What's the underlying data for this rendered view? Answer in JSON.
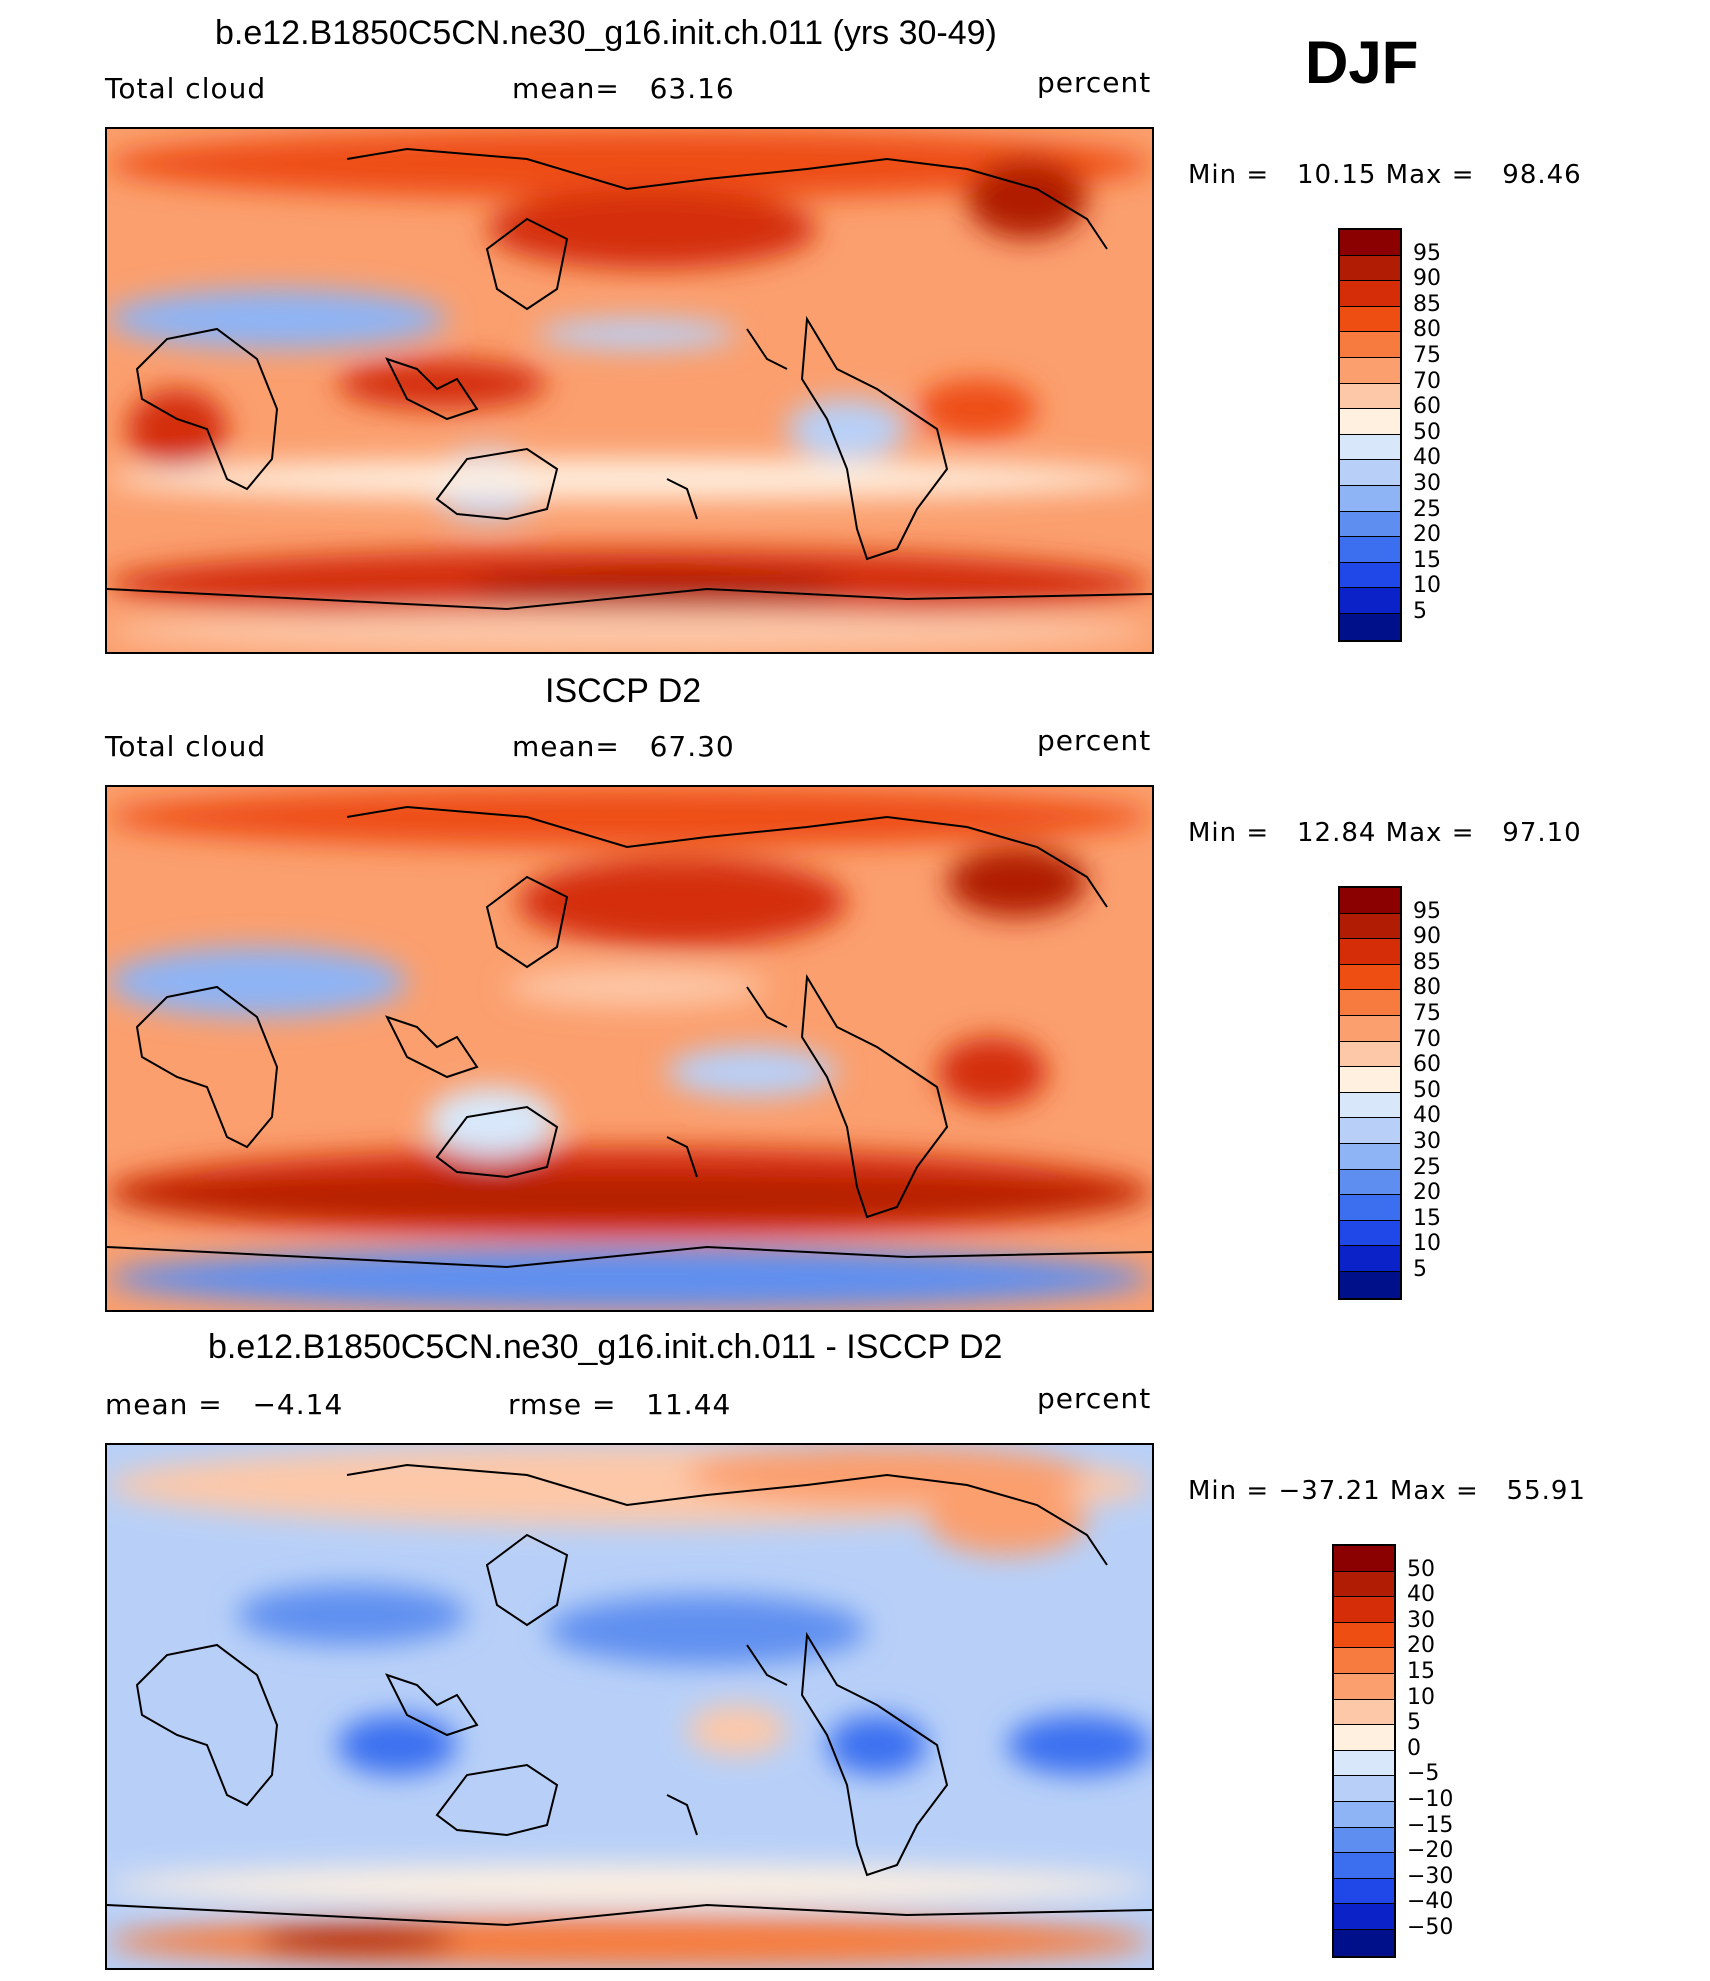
{
  "season": "DJF",
  "units": "percent",
  "coast_color": "#000000",
  "panels": [
    {
      "id": "model",
      "title": "b.e12.B1850C5CN.ne30_g16.init.ch.011 (yrs 30-49)",
      "left_label": "Total cloud",
      "center_label": "mean=   63.16",
      "right_label": "percent",
      "minmax": "Min =   10.15 Max =   98.46",
      "colorbar_colors": [
        "#8b0000",
        "#b01c04",
        "#d42d08",
        "#ee4e12",
        "#f77b3e",
        "#fb9f6e",
        "#fdc8a8",
        "#fff0e0",
        "#d8e8fa",
        "#b8d0f8",
        "#8eb4f5",
        "#5e8ff0",
        "#3b6ff0",
        "#2048e8",
        "#0a22c8",
        "#00108a"
      ],
      "colorbar_ticks": [
        "95",
        "90",
        "85",
        "80",
        "75",
        "70",
        "60",
        "50",
        "40",
        "30",
        "25",
        "20",
        "15",
        "10",
        "5"
      ],
      "field": {
        "base": "#fb9f6e",
        "regions": [
          {
            "c": "#d42d08",
            "x": 0,
            "y": 420,
            "w": 1045,
            "h": 70
          },
          {
            "c": "#b01c04",
            "x": 360,
            "y": 440,
            "w": 380,
            "h": 40
          },
          {
            "c": "#fdc8a8",
            "x": 0,
            "y": 480,
            "w": 1045,
            "h": 45
          },
          {
            "c": "#ee4e12",
            "x": 0,
            "y": 0,
            "w": 1045,
            "h": 70
          },
          {
            "c": "#d42d08",
            "x": 380,
            "y": 60,
            "w": 330,
            "h": 80
          },
          {
            "c": "#8eb4f5",
            "x": 0,
            "y": 160,
            "w": 340,
            "h": 60
          },
          {
            "c": "#b8d0f8",
            "x": 430,
            "y": 190,
            "w": 200,
            "h": 30
          },
          {
            "c": "#b8d0f8",
            "x": 680,
            "y": 270,
            "w": 120,
            "h": 60
          },
          {
            "c": "#d42d08",
            "x": 230,
            "y": 230,
            "w": 210,
            "h": 50
          },
          {
            "c": "#ee4e12",
            "x": 810,
            "y": 250,
            "w": 120,
            "h": 60
          },
          {
            "c": "#b01c04",
            "x": 860,
            "y": 30,
            "w": 120,
            "h": 80
          },
          {
            "c": "#b8d0f8",
            "x": 320,
            "y": 320,
            "w": 120,
            "h": 70
          },
          {
            "c": "#d42d08",
            "x": 20,
            "y": 260,
            "w": 100,
            "h": 80
          },
          {
            "c": "#fff0e0",
            "x": 0,
            "y": 330,
            "w": 1045,
            "h": 40
          }
        ]
      }
    },
    {
      "id": "obs",
      "title": "ISCCP D2",
      "left_label": "Total cloud",
      "center_label": "mean=   67.30",
      "right_label": "percent",
      "minmax": "Min =   12.84 Max =   97.10",
      "colorbar_colors": [
        "#8b0000",
        "#b01c04",
        "#d42d08",
        "#ee4e12",
        "#f77b3e",
        "#fb9f6e",
        "#fdc8a8",
        "#fff0e0",
        "#d8e8fa",
        "#b8d0f8",
        "#8eb4f5",
        "#5e8ff0",
        "#3b6ff0",
        "#2048e8",
        "#0a22c8",
        "#00108a"
      ],
      "colorbar_ticks": [
        "95",
        "90",
        "85",
        "80",
        "75",
        "70",
        "60",
        "50",
        "40",
        "30",
        "25",
        "20",
        "15",
        "10",
        "5"
      ],
      "field": {
        "base": "#fb9f6e",
        "regions": [
          {
            "c": "#d42d08",
            "x": 0,
            "y": 360,
            "w": 1045,
            "h": 90
          },
          {
            "c": "#b01c04",
            "x": 0,
            "y": 390,
            "w": 1045,
            "h": 40
          },
          {
            "c": "#5e8ff0",
            "x": 0,
            "y": 460,
            "w": 1045,
            "h": 63
          },
          {
            "c": "#8eb4f5",
            "x": 0,
            "y": 160,
            "w": 300,
            "h": 70
          },
          {
            "c": "#d42d08",
            "x": 410,
            "y": 70,
            "w": 330,
            "h": 90
          },
          {
            "c": "#fdc8a8",
            "x": 400,
            "y": 180,
            "w": 260,
            "h": 40
          },
          {
            "c": "#b8d0f8",
            "x": 560,
            "y": 260,
            "w": 170,
            "h": 50
          },
          {
            "c": "#b01c04",
            "x": 840,
            "y": 60,
            "w": 140,
            "h": 70
          },
          {
            "c": "#d42d08",
            "x": 830,
            "y": 250,
            "w": 110,
            "h": 70
          },
          {
            "c": "#d8e8fa",
            "x": 320,
            "y": 300,
            "w": 130,
            "h": 70
          },
          {
            "c": "#ee4e12",
            "x": 0,
            "y": 0,
            "w": 1045,
            "h": 60
          }
        ]
      }
    },
    {
      "id": "diff",
      "title": "b.e12.B1850C5CN.ne30_g16.init.ch.011 - ISCCP D2",
      "left_label": "mean =   −4.14",
      "center_label": "rmse =   11.44",
      "right_label": "percent",
      "minmax": "Min = −37.21 Max =   55.91",
      "colorbar_colors": [
        "#8b0000",
        "#b01c04",
        "#d42d08",
        "#ee4e12",
        "#f77b3e",
        "#fb9f6e",
        "#fdc8a8",
        "#fff0e0",
        "#d8e8fa",
        "#b8d0f8",
        "#8eb4f5",
        "#5e8ff0",
        "#3b6ff0",
        "#2048e8",
        "#0a22c8",
        "#00108a"
      ],
      "colorbar_ticks": [
        "50",
        "40",
        "30",
        "20",
        "15",
        "10",
        "5",
        "0",
        "−5",
        "−10",
        "−15",
        "−20",
        "−30",
        "−40",
        "−50"
      ],
      "field": {
        "base": "#b8d0f8",
        "regions": [
          {
            "c": "#fdc8a8",
            "x": 0,
            "y": 0,
            "w": 1045,
            "h": 80
          },
          {
            "c": "#fb9f6e",
            "x": 580,
            "y": 0,
            "w": 400,
            "h": 60
          },
          {
            "c": "#5e8ff0",
            "x": 130,
            "y": 140,
            "w": 230,
            "h": 60
          },
          {
            "c": "#5e8ff0",
            "x": 440,
            "y": 150,
            "w": 320,
            "h": 70
          },
          {
            "c": "#3b6ff0",
            "x": 230,
            "y": 270,
            "w": 120,
            "h": 60
          },
          {
            "c": "#3b6ff0",
            "x": 720,
            "y": 270,
            "w": 100,
            "h": 60
          },
          {
            "c": "#fdc8a8",
            "x": 580,
            "y": 260,
            "w": 100,
            "h": 50
          },
          {
            "c": "#fff0e0",
            "x": 0,
            "y": 420,
            "w": 1045,
            "h": 40
          },
          {
            "c": "#f77b3e",
            "x": 0,
            "y": 470,
            "w": 1045,
            "h": 53
          },
          {
            "c": "#b01c04",
            "x": 150,
            "y": 480,
            "w": 200,
            "h": 30
          },
          {
            "c": "#3b6ff0",
            "x": 900,
            "y": 270,
            "w": 145,
            "h": 60
          },
          {
            "c": "#fb9f6e",
            "x": 820,
            "y": 40,
            "w": 160,
            "h": 70
          }
        ]
      }
    }
  ]
}
